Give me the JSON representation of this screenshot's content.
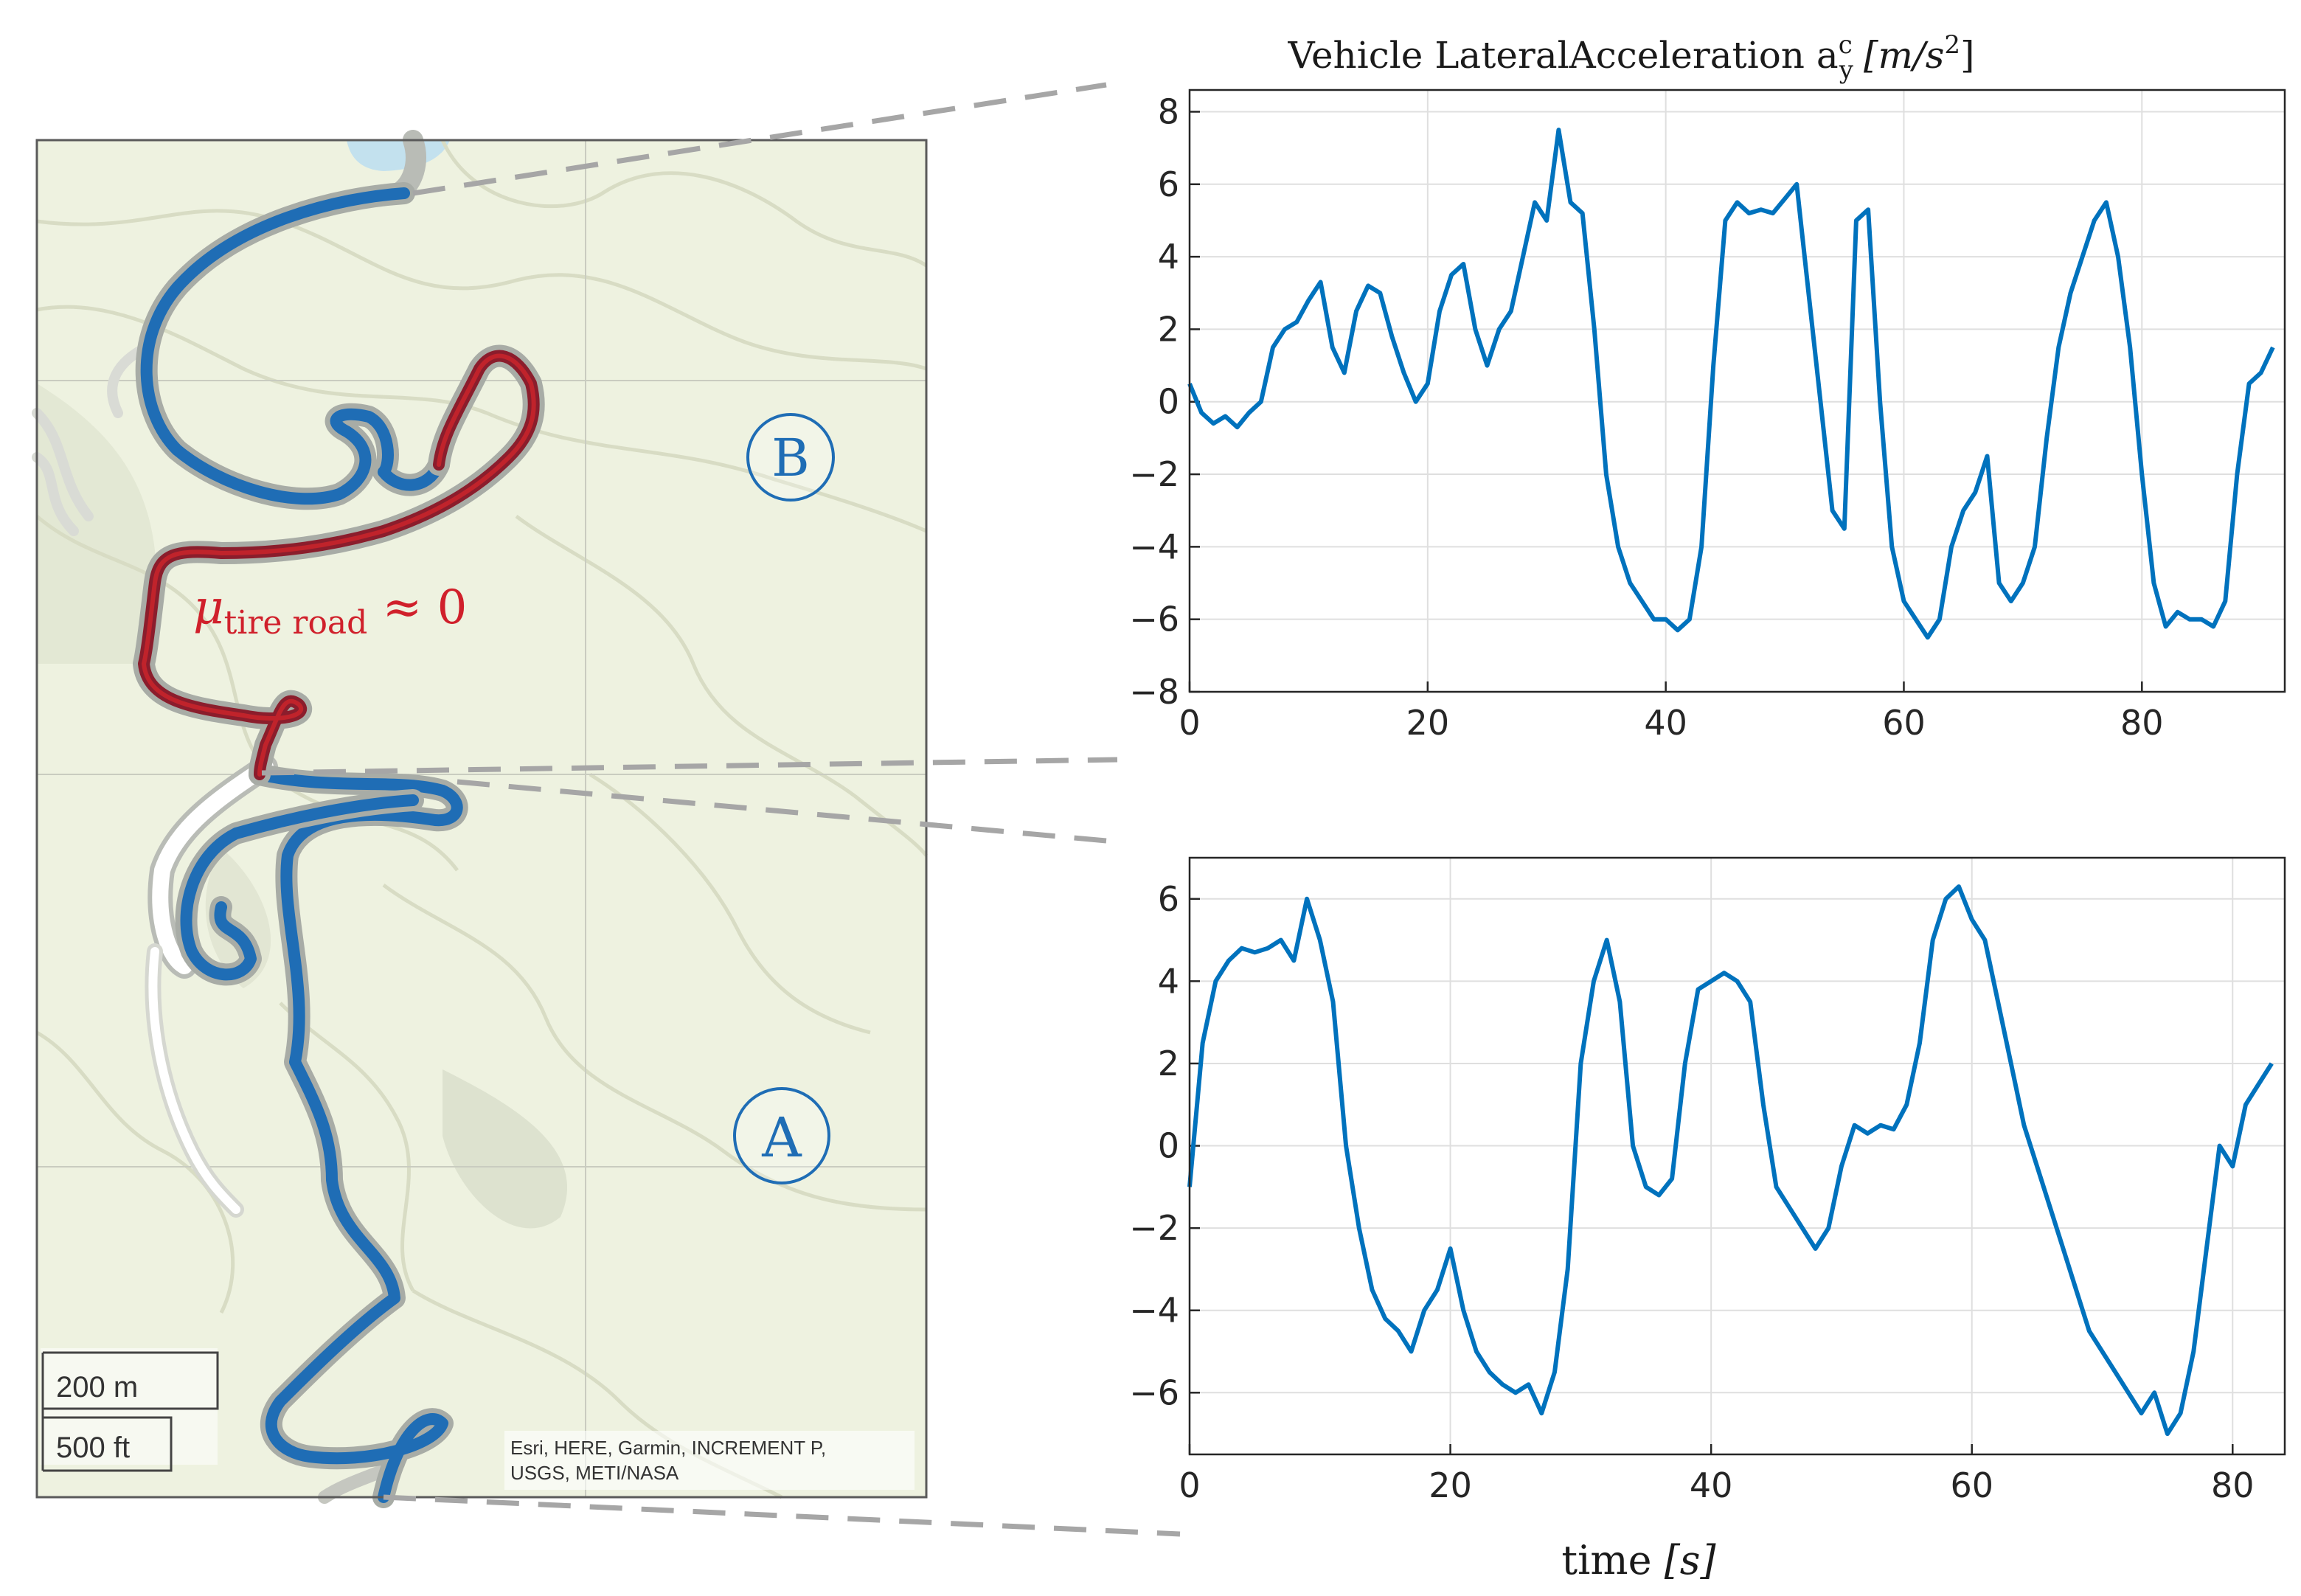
{
  "map": {
    "label_a": "A",
    "label_b": "B",
    "friction_mu": "μ",
    "friction_sub": "tire road",
    "friction_rest": " ≈ 0",
    "scale_m": "200 m",
    "scale_ft": "500 ft",
    "attribution_line1": "Esri, HERE, Garmin, INCREMENT P,",
    "attribution_line2": "USGS, METI/NASA",
    "colors": {
      "background": "#eef2e0",
      "route": "#1f6db5",
      "low_friction": "#c0232b",
      "road": "#ffffff"
    }
  },
  "chart_data": [
    {
      "type": "line",
      "id": "B",
      "title_main": "Vehicle LateralAcceleration a",
      "title_sup": "c",
      "title_sub": "y",
      "title_unit": "[m/s",
      "title_unit_sup": "2",
      "title_unit_end": "]",
      "xlim": [
        0,
        92
      ],
      "ylim": [
        -8,
        8.6
      ],
      "xticks": [
        0,
        20,
        40,
        60,
        80
      ],
      "yticks": [
        -8,
        -6,
        -4,
        -2,
        0,
        2,
        4,
        6,
        8
      ],
      "ytick_labels": [
        "−8",
        "−6",
        "−4",
        "−2",
        "0",
        "2",
        "4",
        "6",
        "8"
      ],
      "grid": true,
      "color": "#0072bd",
      "series": [
        {
          "x": [
            0,
            1,
            2,
            3,
            4,
            5,
            6,
            7,
            8,
            9,
            10,
            11,
            12,
            13,
            14,
            15,
            16,
            17,
            18,
            19,
            20,
            21,
            22,
            23,
            24,
            25,
            26,
            27,
            28,
            29,
            30,
            31,
            32,
            33,
            34,
            35,
            36,
            37,
            38,
            39,
            40,
            41,
            42,
            43,
            44,
            45,
            46,
            47,
            48,
            49,
            50,
            51,
            52,
            53,
            54,
            55,
            56,
            57,
            58,
            59,
            60,
            61,
            62,
            63,
            64,
            65,
            66,
            67,
            68,
            69,
            70,
            71,
            72,
            73,
            74,
            75,
            76,
            77,
            78,
            79,
            80,
            81,
            82,
            83,
            84,
            85,
            86,
            87,
            88,
            89,
            90,
            91
          ],
          "values": [
            0.5,
            -0.3,
            -0.6,
            -0.4,
            -0.7,
            -0.3,
            0.0,
            1.5,
            2.0,
            2.2,
            2.8,
            3.3,
            1.5,
            0.8,
            2.5,
            3.2,
            3.0,
            1.8,
            0.8,
            0.0,
            0.5,
            2.5,
            3.5,
            3.8,
            2.0,
            1.0,
            2.0,
            2.5,
            4.0,
            5.5,
            5.0,
            7.5,
            5.5,
            5.2,
            2.0,
            -2.0,
            -4.0,
            -5.0,
            -5.5,
            -6.0,
            -6.0,
            -6.3,
            -6.0,
            -4.0,
            1.0,
            5.0,
            5.5,
            5.2,
            5.3,
            5.2,
            5.6,
            6.0,
            3.0,
            0.0,
            -3.0,
            -3.5,
            5.0,
            5.3,
            0.0,
            -4.0,
            -5.5,
            -6.0,
            -6.5,
            -6.0,
            -4.0,
            -3.0,
            -2.5,
            -1.5,
            -5.0,
            -5.5,
            -5.0,
            -4.0,
            -1.0,
            1.5,
            3.0,
            4.0,
            5.0,
            5.5,
            4.0,
            1.5,
            -2.0,
            -5.0,
            -6.2,
            -5.8,
            -6.0,
            -6.0,
            -6.2,
            -5.5,
            -2.0,
            0.5,
            0.8,
            1.5
          ]
        }
      ]
    },
    {
      "type": "line",
      "id": "A",
      "xlabel_main": "time ",
      "xlabel_unit": "[s]",
      "xlim": [
        0,
        84
      ],
      "ylim": [
        -7.5,
        7
      ],
      "xticks": [
        0,
        20,
        40,
        60,
        80
      ],
      "yticks": [
        -6,
        -4,
        -2,
        0,
        2,
        4,
        6
      ],
      "ytick_labels": [
        "−6",
        "−4",
        "−2",
        "0",
        "2",
        "4",
        "6"
      ],
      "grid": true,
      "color": "#0072bd",
      "series": [
        {
          "x": [
            0,
            1,
            2,
            3,
            4,
            5,
            6,
            7,
            8,
            9,
            10,
            11,
            12,
            13,
            14,
            15,
            16,
            17,
            18,
            19,
            20,
            21,
            22,
            23,
            24,
            25,
            26,
            27,
            28,
            29,
            30,
            31,
            32,
            33,
            34,
            35,
            36,
            37,
            38,
            39,
            40,
            41,
            42,
            43,
            44,
            45,
            46,
            47,
            48,
            49,
            50,
            51,
            52,
            53,
            54,
            55,
            56,
            57,
            58,
            59,
            60,
            61,
            62,
            63,
            64,
            65,
            66,
            67,
            68,
            69,
            70,
            71,
            72,
            73,
            74,
            75,
            76,
            77,
            78,
            79,
            80,
            81,
            82,
            83
          ],
          "values": [
            -1.0,
            2.5,
            4.0,
            4.5,
            4.8,
            4.7,
            4.8,
            5.0,
            4.5,
            6.0,
            5.0,
            3.5,
            0.0,
            -2.0,
            -3.5,
            -4.2,
            -4.5,
            -5.0,
            -4.0,
            -3.5,
            -2.5,
            -4.0,
            -5.0,
            -5.5,
            -5.8,
            -6.0,
            -5.8,
            -6.5,
            -5.5,
            -3.0,
            2.0,
            4.0,
            5.0,
            3.5,
            0.0,
            -1.0,
            -1.2,
            -0.8,
            2.0,
            3.8,
            4.0,
            4.2,
            4.0,
            3.5,
            1.0,
            -1.0,
            -1.5,
            -2.0,
            -2.5,
            -2.0,
            -0.5,
            0.5,
            0.3,
            0.5,
            0.4,
            1.0,
            2.5,
            5.0,
            6.0,
            6.3,
            5.5,
            5.0,
            3.5,
            2.0,
            0.5,
            -0.5,
            -1.5,
            -2.5,
            -3.5,
            -4.5,
            -5.0,
            -5.5,
            -6.0,
            -6.5,
            -6.0,
            -7.0,
            -6.5,
            -5.0,
            -2.5,
            0.0,
            -0.5,
            1.0,
            1.5,
            2.0
          ]
        }
      ]
    }
  ]
}
